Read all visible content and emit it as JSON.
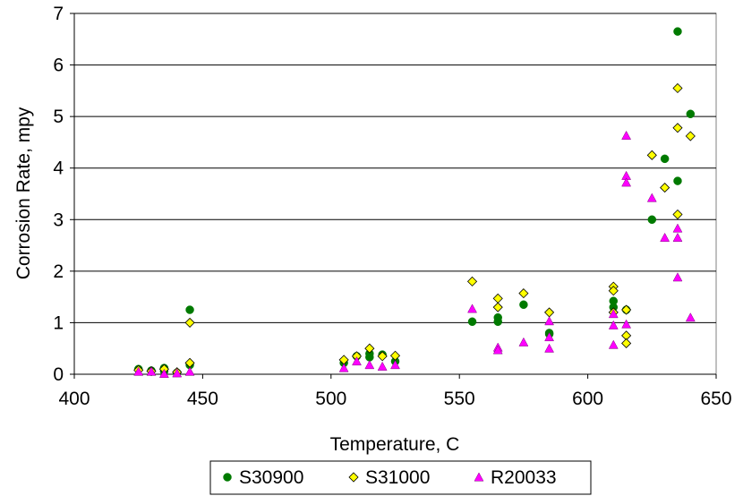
{
  "chart_data": {
    "type": "scatter",
    "title": "",
    "xlabel": "Temperature, C",
    "ylabel": "Corrosion Rate, mpy",
    "xlim": [
      400,
      650
    ],
    "ylim": [
      0,
      7
    ],
    "x_ticks": [
      400,
      450,
      500,
      550,
      600,
      650
    ],
    "y_ticks": [
      0,
      1,
      2,
      3,
      4,
      5,
      6,
      7
    ],
    "grid": "horizontal",
    "legend": "bottom",
    "series": [
      {
        "name": "S30900",
        "marker": "circle",
        "color": "#007A00",
        "points": [
          [
            425,
            0.1
          ],
          [
            430,
            0.07
          ],
          [
            435,
            0.12
          ],
          [
            435,
            0.06
          ],
          [
            440,
            0.03
          ],
          [
            445,
            0.18
          ],
          [
            445,
            1.25
          ],
          [
            505,
            0.22
          ],
          [
            510,
            0.35
          ],
          [
            515,
            0.4
          ],
          [
            515,
            0.33
          ],
          [
            520,
            0.38
          ],
          [
            525,
            0.25
          ],
          [
            555,
            1.02
          ],
          [
            565,
            1.1
          ],
          [
            565,
            1.02
          ],
          [
            575,
            1.35
          ],
          [
            585,
            0.8
          ],
          [
            585,
            0.78
          ],
          [
            610,
            1.42
          ],
          [
            610,
            1.3
          ],
          [
            615,
            1.25
          ],
          [
            625,
            3.0
          ],
          [
            630,
            4.18
          ],
          [
            635,
            6.65
          ],
          [
            635,
            3.75
          ],
          [
            640,
            5.05
          ]
        ]
      },
      {
        "name": "S31000",
        "marker": "diamond",
        "color": "#FFFF00",
        "points": [
          [
            425,
            0.08
          ],
          [
            430,
            0.06
          ],
          [
            435,
            0.1
          ],
          [
            440,
            0.04
          ],
          [
            445,
            0.22
          ],
          [
            445,
            1.0
          ],
          [
            505,
            0.28
          ],
          [
            510,
            0.35
          ],
          [
            515,
            0.5
          ],
          [
            520,
            0.35
          ],
          [
            525,
            0.36
          ],
          [
            555,
            1.8
          ],
          [
            565,
            1.47
          ],
          [
            565,
            1.3
          ],
          [
            575,
            1.57
          ],
          [
            585,
            1.2
          ],
          [
            610,
            1.7
          ],
          [
            610,
            1.62
          ],
          [
            610,
            1.2
          ],
          [
            615,
            1.25
          ],
          [
            615,
            0.75
          ],
          [
            615,
            0.6
          ],
          [
            625,
            4.25
          ],
          [
            630,
            3.62
          ],
          [
            635,
            5.55
          ],
          [
            635,
            4.78
          ],
          [
            635,
            3.1
          ],
          [
            640,
            4.62
          ]
        ]
      },
      {
        "name": "R20033",
        "marker": "triangle",
        "color": "#FF00FF",
        "points": [
          [
            425,
            0.05
          ],
          [
            430,
            0.05
          ],
          [
            435,
            0.01
          ],
          [
            440,
            0.02
          ],
          [
            445,
            0.05
          ],
          [
            505,
            0.12
          ],
          [
            510,
            0.25
          ],
          [
            515,
            0.18
          ],
          [
            520,
            0.15
          ],
          [
            525,
            0.18
          ],
          [
            555,
            1.27
          ],
          [
            565,
            0.52
          ],
          [
            565,
            0.47
          ],
          [
            575,
            0.62
          ],
          [
            585,
            1.03
          ],
          [
            585,
            0.72
          ],
          [
            585,
            0.5
          ],
          [
            610,
            1.17
          ],
          [
            610,
            0.95
          ],
          [
            610,
            0.57
          ],
          [
            615,
            4.63
          ],
          [
            615,
            3.85
          ],
          [
            615,
            3.72
          ],
          [
            615,
            0.97
          ],
          [
            625,
            3.42
          ],
          [
            630,
            2.65
          ],
          [
            635,
            2.83
          ],
          [
            635,
            2.65
          ],
          [
            635,
            1.88
          ],
          [
            640,
            1.1
          ]
        ]
      }
    ]
  }
}
